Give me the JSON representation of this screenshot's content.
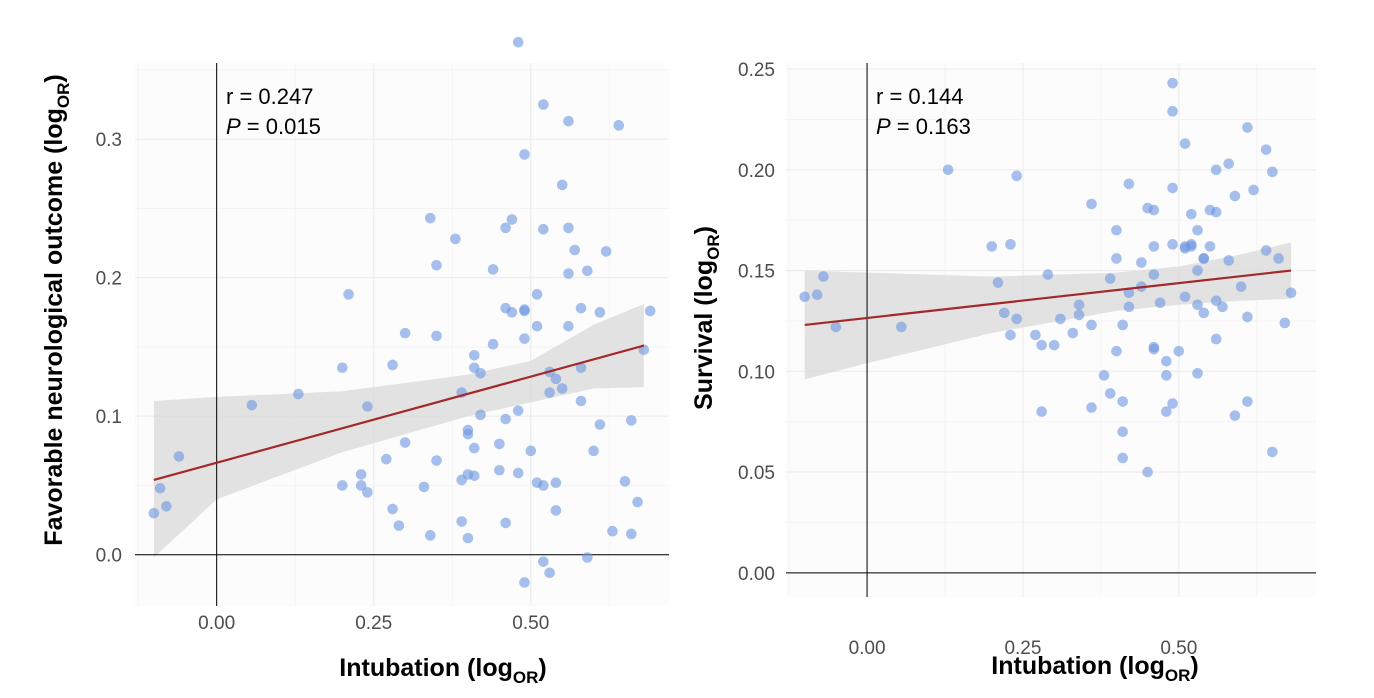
{
  "chart_data": [
    {
      "type": "scatter",
      "xlabel": "Intubation (log",
      "xlabel_sub": "OR",
      "xlabel_close": ")",
      "ylabel": "Favorable neurological outcome (log",
      "ylabel_sub": "OR",
      "ylabel_close": ")",
      "annotation_r": "r = 0.247",
      "annotation_p_label": "P",
      "annotation_p_value": " = 0.015",
      "xlim": [
        -0.13,
        0.72
      ],
      "ylim": [
        -0.037,
        0.355
      ],
      "xticks": [
        0.0,
        0.25,
        0.5
      ],
      "xtick_labels": [
        "0.00",
        "0.25",
        "0.50"
      ],
      "yticks": [
        0.0,
        0.1,
        0.2,
        0.3
      ],
      "ytick_labels": [
        "0.0",
        "0.1",
        "0.2",
        "0.3"
      ],
      "point_color": "#6f98e0",
      "line_color": "#a3282a",
      "band_color": "#d9d9d9",
      "trend": {
        "x": [
          -0.1,
          0.68
        ],
        "y": [
          0.054,
          0.151
        ]
      },
      "band": {
        "x": [
          -0.1,
          0.0,
          0.2,
          0.4,
          0.5,
          0.6,
          0.68
        ],
        "lower": [
          -0.002,
          0.04,
          0.074,
          0.1,
          0.11,
          0.12,
          0.121
        ],
        "upper": [
          0.111,
          0.114,
          0.118,
          0.13,
          0.14,
          0.166,
          0.181
        ]
      },
      "points": [
        [
          -0.1,
          0.03
        ],
        [
          -0.09,
          0.048
        ],
        [
          -0.08,
          0.035
        ],
        [
          -0.06,
          0.071
        ],
        [
          0.056,
          0.108
        ],
        [
          0.13,
          0.116
        ],
        [
          0.2,
          0.05
        ],
        [
          0.2,
          0.135
        ],
        [
          0.21,
          0.188
        ],
        [
          0.23,
          0.058
        ],
        [
          0.23,
          0.05
        ],
        [
          0.24,
          0.107
        ],
        [
          0.24,
          0.045
        ],
        [
          0.27,
          0.069
        ],
        [
          0.28,
          0.137
        ],
        [
          0.28,
          0.033
        ],
        [
          0.29,
          0.021
        ],
        [
          0.3,
          0.081
        ],
        [
          0.3,
          0.16
        ],
        [
          0.33,
          0.049
        ],
        [
          0.34,
          0.243
        ],
        [
          0.34,
          0.014
        ],
        [
          0.35,
          0.209
        ],
        [
          0.35,
          0.158
        ],
        [
          0.35,
          0.068
        ],
        [
          0.38,
          0.228
        ],
        [
          0.39,
          0.024
        ],
        [
          0.39,
          0.054
        ],
        [
          0.39,
          0.117
        ],
        [
          0.4,
          0.09
        ],
        [
          0.4,
          0.087
        ],
        [
          0.4,
          0.058
        ],
        [
          0.4,
          0.012
        ],
        [
          0.41,
          0.144
        ],
        [
          0.41,
          0.077
        ],
        [
          0.41,
          0.057
        ],
        [
          0.41,
          0.135
        ],
        [
          0.42,
          0.131
        ],
        [
          0.42,
          0.101
        ],
        [
          0.44,
          0.206
        ],
        [
          0.44,
          0.152
        ],
        [
          0.45,
          0.08
        ],
        [
          0.45,
          0.061
        ],
        [
          0.46,
          0.236
        ],
        [
          0.46,
          0.178
        ],
        [
          0.46,
          0.098
        ],
        [
          0.46,
          0.023
        ],
        [
          0.47,
          0.175
        ],
        [
          0.47,
          0.242
        ],
        [
          0.48,
          0.37
        ],
        [
          0.48,
          0.104
        ],
        [
          0.48,
          0.059
        ],
        [
          0.49,
          0.177
        ],
        [
          0.49,
          0.176
        ],
        [
          0.49,
          0.156
        ],
        [
          0.49,
          0.289
        ],
        [
          0.49,
          -0.02
        ],
        [
          0.5,
          0.075
        ],
        [
          0.51,
          0.188
        ],
        [
          0.51,
          0.165
        ],
        [
          0.51,
          0.052
        ],
        [
          0.52,
          0.325
        ],
        [
          0.52,
          0.235
        ],
        [
          0.52,
          -0.005
        ],
        [
          0.52,
          0.05
        ],
        [
          0.53,
          0.132
        ],
        [
          0.53,
          0.117
        ],
        [
          0.53,
          -0.013
        ],
        [
          0.54,
          0.052
        ],
        [
          0.54,
          0.127
        ],
        [
          0.54,
          0.032
        ],
        [
          0.55,
          0.267
        ],
        [
          0.55,
          0.12
        ],
        [
          0.56,
          0.313
        ],
        [
          0.56,
          0.236
        ],
        [
          0.56,
          0.203
        ],
        [
          0.56,
          0.165
        ],
        [
          0.57,
          0.22
        ],
        [
          0.58,
          0.178
        ],
        [
          0.58,
          0.135
        ],
        [
          0.58,
          0.111
        ],
        [
          0.59,
          0.205
        ],
        [
          0.59,
          -0.002
        ],
        [
          0.6,
          0.075
        ],
        [
          0.61,
          0.094
        ],
        [
          0.61,
          0.175
        ],
        [
          0.62,
          0.219
        ],
        [
          0.63,
          0.017
        ],
        [
          0.64,
          0.31
        ],
        [
          0.65,
          0.053
        ],
        [
          0.66,
          0.015
        ],
        [
          0.66,
          0.097
        ],
        [
          0.67,
          0.038
        ],
        [
          0.68,
          0.148
        ],
        [
          0.69,
          0.176
        ]
      ]
    },
    {
      "type": "scatter",
      "xlabel": "Intubation (log",
      "xlabel_sub": "OR",
      "xlabel_close": ")",
      "ylabel": "Survival (log",
      "ylabel_sub": "OR",
      "ylabel_close": ")",
      "annotation_r": "r = 0.144",
      "annotation_p_label": "P",
      "annotation_p_value": " = 0.163",
      "xlim": [
        -0.13,
        0.72
      ],
      "ylim": [
        -0.012,
        0.253
      ],
      "xticks": [
        0.0,
        0.25,
        0.5
      ],
      "xtick_labels": [
        "0.00",
        "0.25",
        "0.50"
      ],
      "yticks": [
        0.0,
        0.05,
        0.1,
        0.15,
        0.2,
        0.25
      ],
      "ytick_labels": [
        "0.00",
        "0.05",
        "0.10",
        "0.15",
        "0.20",
        "0.25"
      ],
      "point_color": "#6f98e0",
      "line_color": "#a3282a",
      "band_color": "#d9d9d9",
      "trend": {
        "x": [
          -0.1,
          0.68
        ],
        "y": [
          0.123,
          0.15
        ]
      },
      "band": {
        "x": [
          -0.1,
          0.0,
          0.2,
          0.4,
          0.5,
          0.6,
          0.68
        ],
        "lower": [
          0.096,
          0.104,
          0.119,
          0.13,
          0.133,
          0.135,
          0.136
        ],
        "upper": [
          0.15,
          0.149,
          0.147,
          0.149,
          0.152,
          0.158,
          0.164
        ]
      },
      "points": [
        [
          -0.1,
          0.137
        ],
        [
          -0.08,
          0.138
        ],
        [
          -0.07,
          0.147
        ],
        [
          -0.05,
          0.122
        ],
        [
          0.055,
          0.122
        ],
        [
          0.13,
          0.2
        ],
        [
          0.2,
          0.162
        ],
        [
          0.21,
          0.144
        ],
        [
          0.22,
          0.129
        ],
        [
          0.23,
          0.118
        ],
        [
          0.23,
          0.163
        ],
        [
          0.24,
          0.197
        ],
        [
          0.24,
          0.126
        ],
        [
          0.27,
          0.118
        ],
        [
          0.28,
          0.08
        ],
        [
          0.28,
          0.113
        ],
        [
          0.29,
          0.148
        ],
        [
          0.3,
          0.113
        ],
        [
          0.31,
          0.126
        ],
        [
          0.33,
          0.119
        ],
        [
          0.34,
          0.128
        ],
        [
          0.34,
          0.133
        ],
        [
          0.36,
          0.123
        ],
        [
          0.36,
          0.082
        ],
        [
          0.36,
          0.183
        ],
        [
          0.38,
          0.098
        ],
        [
          0.39,
          0.089
        ],
        [
          0.39,
          0.146
        ],
        [
          0.4,
          0.11
        ],
        [
          0.4,
          0.156
        ],
        [
          0.4,
          0.17
        ],
        [
          0.41,
          0.057
        ],
        [
          0.41,
          0.085
        ],
        [
          0.41,
          0.07
        ],
        [
          0.41,
          0.123
        ],
        [
          0.42,
          0.193
        ],
        [
          0.42,
          0.139
        ],
        [
          0.42,
          0.132
        ],
        [
          0.44,
          0.154
        ],
        [
          0.44,
          0.142
        ],
        [
          0.45,
          0.181
        ],
        [
          0.45,
          0.05
        ],
        [
          0.46,
          0.18
        ],
        [
          0.46,
          0.162
        ],
        [
          0.46,
          0.148
        ],
        [
          0.46,
          0.111
        ],
        [
          0.46,
          0.112
        ],
        [
          0.47,
          0.134
        ],
        [
          0.48,
          0.08
        ],
        [
          0.48,
          0.098
        ],
        [
          0.48,
          0.105
        ],
        [
          0.49,
          0.243
        ],
        [
          0.49,
          0.229
        ],
        [
          0.49,
          0.191
        ],
        [
          0.49,
          0.163
        ],
        [
          0.49,
          0.084
        ],
        [
          0.5,
          0.11
        ],
        [
          0.51,
          0.213
        ],
        [
          0.51,
          0.162
        ],
        [
          0.51,
          0.161
        ],
        [
          0.51,
          0.137
        ],
        [
          0.52,
          0.178
        ],
        [
          0.52,
          0.163
        ],
        [
          0.52,
          0.162
        ],
        [
          0.53,
          0.17
        ],
        [
          0.53,
          0.15
        ],
        [
          0.53,
          0.133
        ],
        [
          0.53,
          0.099
        ],
        [
          0.54,
          0.156
        ],
        [
          0.54,
          0.156
        ],
        [
          0.54,
          0.129
        ],
        [
          0.55,
          0.18
        ],
        [
          0.55,
          0.162
        ],
        [
          0.56,
          0.2
        ],
        [
          0.56,
          0.179
        ],
        [
          0.56,
          0.135
        ],
        [
          0.56,
          0.116
        ],
        [
          0.57,
          0.132
        ],
        [
          0.58,
          0.155
        ],
        [
          0.58,
          0.203
        ],
        [
          0.59,
          0.187
        ],
        [
          0.59,
          0.078
        ],
        [
          0.6,
          0.142
        ],
        [
          0.61,
          0.127
        ],
        [
          0.61,
          0.085
        ],
        [
          0.61,
          0.221
        ],
        [
          0.62,
          0.19
        ],
        [
          0.64,
          0.21
        ],
        [
          0.64,
          0.16
        ],
        [
          0.65,
          0.199
        ],
        [
          0.65,
          0.06
        ],
        [
          0.66,
          0.156
        ],
        [
          0.67,
          0.124
        ],
        [
          0.68,
          0.139
        ]
      ]
    }
  ]
}
